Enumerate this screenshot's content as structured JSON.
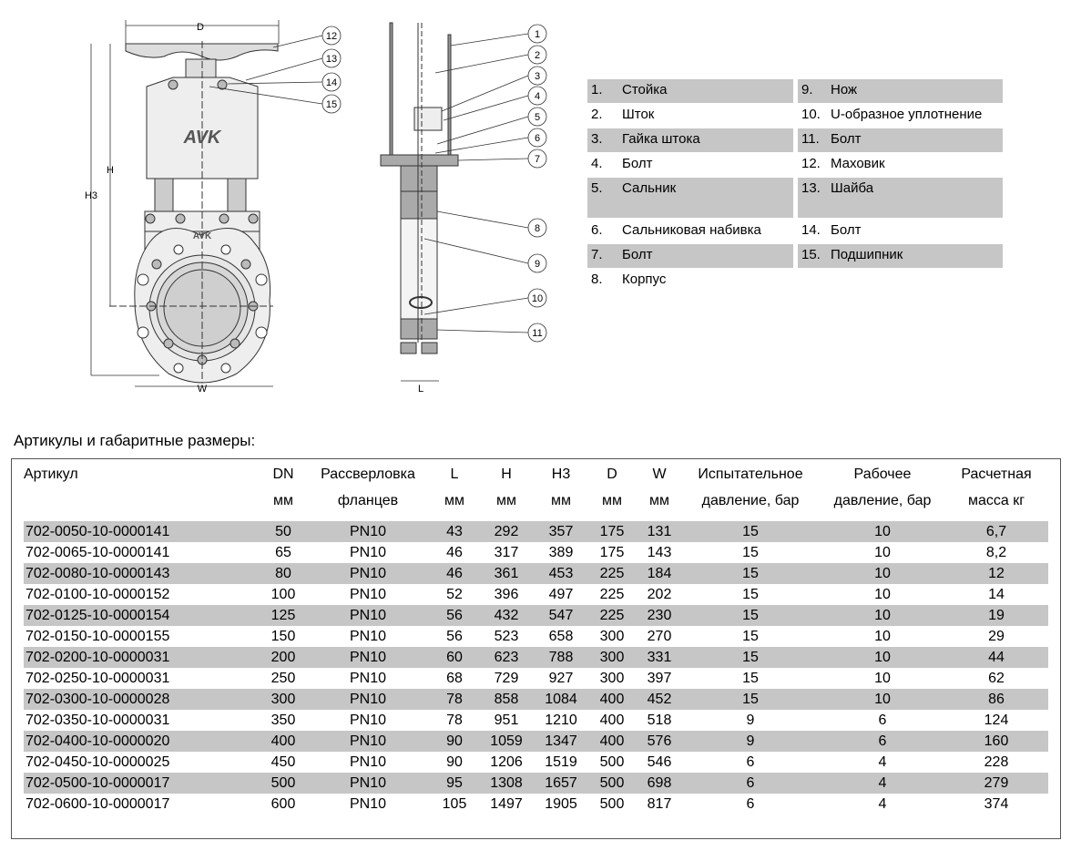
{
  "drawing": {
    "front_labels": {
      "D": "D",
      "H": "H",
      "H3": "H3",
      "W": "W"
    },
    "side_labels": {
      "L": "L"
    },
    "logo": "AVK",
    "callouts": [
      "1",
      "2",
      "3",
      "4",
      "5",
      "6",
      "7",
      "8",
      "9",
      "10",
      "11",
      "12",
      "13",
      "14",
      "15"
    ]
  },
  "parts": [
    {
      "n": "1.",
      "t": "Стойка"
    },
    {
      "n": "2.",
      "t": "Шток"
    },
    {
      "n": "3.",
      "t": "Гайка штока"
    },
    {
      "n": "4.",
      "t": "Болт"
    },
    {
      "n": "5.",
      "t": "Сальник"
    },
    {
      "n": "6.",
      "t": "Сальниковая набивка"
    },
    {
      "n": "7.",
      "t": "Болт"
    },
    {
      "n": "8.",
      "t": "Корпус"
    },
    {
      "n": "9.",
      "t": "Нож"
    },
    {
      "n": "10.",
      "t": "U-образное уплотнение"
    },
    {
      "n": "11.",
      "t": "Болт"
    },
    {
      "n": "12.",
      "t": "Маховик"
    },
    {
      "n": "13.",
      "t": "Шайба"
    },
    {
      "n": "14.",
      "t": "Болт"
    },
    {
      "n": "15.",
      "t": "Подшипник"
    }
  ],
  "table": {
    "title": "Артикулы и габаритные размеры:",
    "headers": [
      [
        "Артикул",
        ""
      ],
      [
        "DN",
        "мм"
      ],
      [
        "Рассверловка",
        "фланцев"
      ],
      [
        "L",
        "мм"
      ],
      [
        "H",
        "мм"
      ],
      [
        "H3",
        "мм"
      ],
      [
        "D",
        "мм"
      ],
      [
        "W",
        "мм"
      ],
      [
        "Испытательное",
        "давление, бар"
      ],
      [
        "Рабочее",
        "давление, бар"
      ],
      [
        "Расчетная",
        "масса кг"
      ]
    ],
    "rows": [
      [
        "702-0050-10-0000141",
        "50",
        "PN10",
        "43",
        "292",
        "357",
        "175",
        "131",
        "15",
        "10",
        "6,7"
      ],
      [
        "702-0065-10-0000141",
        "65",
        "PN10",
        "46",
        "317",
        "389",
        "175",
        "143",
        "15",
        "10",
        "8,2"
      ],
      [
        "702-0080-10-0000143",
        "80",
        "PN10",
        "46",
        "361",
        "453",
        "225",
        "184",
        "15",
        "10",
        "12"
      ],
      [
        "702-0100-10-0000152",
        "100",
        "PN10",
        "52",
        "396",
        "497",
        "225",
        "202",
        "15",
        "10",
        "14"
      ],
      [
        "702-0125-10-0000154",
        "125",
        "PN10",
        "56",
        "432",
        "547",
        "225",
        "230",
        "15",
        "10",
        "19"
      ],
      [
        "702-0150-10-0000155",
        "150",
        "PN10",
        "56",
        "523",
        "658",
        "300",
        "270",
        "15",
        "10",
        "29"
      ],
      [
        "702-0200-10-0000031",
        "200",
        "PN10",
        "60",
        "623",
        "788",
        "300",
        "331",
        "15",
        "10",
        "44"
      ],
      [
        "702-0250-10-0000031",
        "250",
        "PN10",
        "68",
        "729",
        "927",
        "300",
        "397",
        "15",
        "10",
        "62"
      ],
      [
        "702-0300-10-0000028",
        "300",
        "PN10",
        "78",
        "858",
        "1084",
        "400",
        "452",
        "15",
        "10",
        "86"
      ],
      [
        "702-0350-10-0000031",
        "350",
        "PN10",
        "78",
        "951",
        "1210",
        "400",
        "518",
        "9",
        "6",
        "124"
      ],
      [
        "702-0400-10-0000020",
        "400",
        "PN10",
        "90",
        "1059",
        "1347",
        "400",
        "576",
        "9",
        "6",
        "160"
      ],
      [
        "702-0450-10-0000025",
        "450",
        "PN10",
        "90",
        "1206",
        "1519",
        "500",
        "546",
        "6",
        "4",
        "228"
      ],
      [
        "702-0500-10-0000017",
        "500",
        "PN10",
        "95",
        "1308",
        "1657",
        "500",
        "698",
        "6",
        "4",
        "279"
      ],
      [
        "702-0600-10-0000017",
        "600",
        "PN10",
        "105",
        "1497",
        "1905",
        "500",
        "817",
        "6",
        "4",
        "374"
      ]
    ]
  }
}
